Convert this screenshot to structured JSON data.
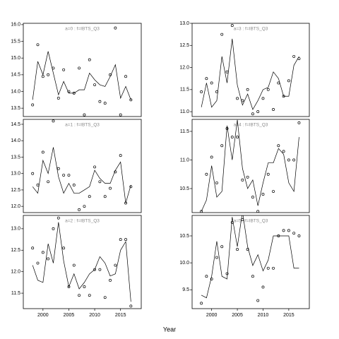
{
  "xlabel": "Year",
  "chart_data": [
    {
      "type": "line",
      "title": "a=0 : f=IBTS_Q3",
      "x": [
        1998,
        1999,
        2000,
        2001,
        2002,
        2003,
        2004,
        2005,
        2006,
        2007,
        2008,
        2009,
        2010,
        2011,
        2012,
        2013,
        2014,
        2015,
        2016,
        2017
      ],
      "series": [
        {
          "color": "#000000",
          "marker": true,
          "values": [
            13.6,
            15.4,
            14.45,
            14.5,
            14.7,
            13.8,
            14.65,
            14.0,
            13.95,
            14.7,
            13.3,
            14.95,
            14.2,
            13.7,
            13.65,
            14.5,
            15.9,
            13.3,
            14.45,
            13.75
          ]
        },
        {
          "color": "#000000",
          "marker": false,
          "values": [
            13.75,
            14.9,
            14.5,
            15.2,
            14.55,
            13.9,
            14.3,
            13.95,
            13.95,
            14.05,
            14.05,
            14.55,
            14.35,
            14.2,
            14.15,
            14.45,
            14.8,
            13.8,
            14.15,
            13.75
          ]
        }
      ],
      "xlim": [
        1996.2,
        2019
      ],
      "ylim": [
        13.25,
        16.04
      ],
      "yticks": [
        13.5,
        {
          "value": 14,
          "label": "14.0"
        },
        14.5,
        {
          "value": 15,
          "label": "15.0"
        },
        15.5,
        {
          "value": 16,
          "label": "16.0"
        }
      ]
    },
    {
      "type": "line",
      "title": "a=1 : f=IBTS_Q3",
      "x": [
        1998,
        1999,
        2000,
        2001,
        2002,
        2003,
        2004,
        2005,
        2006,
        2007,
        2008,
        2009,
        2010,
        2011,
        2012,
        2013,
        2014,
        2015,
        2016,
        2017
      ],
      "series": [
        {
          "color": "#000000",
          "marker": true,
          "values": [
            13.0,
            12.65,
            13.65,
            12.75,
            14.6,
            13.15,
            12.95,
            12.95,
            12.65,
            11.9,
            12.0,
            12.3,
            13.2,
            12.75,
            12.3,
            12.55,
            13.05,
            13.55,
            12.1,
            12.6
          ]
        },
        {
          "color": "#000000",
          "marker": false,
          "values": [
            12.6,
            12.4,
            13.4,
            13.0,
            13.8,
            12.9,
            12.4,
            12.7,
            12.4,
            12.4,
            12.5,
            12.6,
            13.1,
            12.85,
            12.7,
            12.7,
            13.1,
            13.35,
            12.1,
            12.65
          ]
        }
      ],
      "xlim": [
        1996.2,
        2019
      ],
      "ylim": [
        11.81,
        14.65
      ],
      "yticks": [
        {
          "value": 12,
          "label": "12.0"
        },
        12.5,
        {
          "value": 13,
          "label": "13.0"
        },
        13.5,
        {
          "value": 14,
          "label": "14.0"
        },
        14.5
      ]
    },
    {
      "type": "line",
      "title": "a=2 : f=IBTS_Q3",
      "x": [
        1998,
        1999,
        2000,
        2001,
        2002,
        2003,
        2004,
        2005,
        2006,
        2007,
        2008,
        2009,
        2010,
        2011,
        2012,
        2013,
        2014,
        2015,
        2016,
        2017
      ],
      "series": [
        {
          "color": "#000000",
          "marker": true,
          "values": [
            12.55,
            12.2,
            12.45,
            12.3,
            13.0,
            13.25,
            12.55,
            11.65,
            12.15,
            11.45,
            11.65,
            11.45,
            12.05,
            12.05,
            11.4,
            11.8,
            12.15,
            12.75,
            12.75,
            11.2
          ]
        },
        {
          "color": "#000000",
          "marker": false,
          "values": [
            12.15,
            11.8,
            11.75,
            12.65,
            12.2,
            13.15,
            12.25,
            11.65,
            11.95,
            11.6,
            11.75,
            11.95,
            12.05,
            12.35,
            12.2,
            11.9,
            11.95,
            12.5,
            12.7,
            11.3
          ]
        }
      ],
      "xlim": [
        1996.2,
        2019
      ],
      "ylim": [
        11.14,
        13.31
      ],
      "yticks": [
        11.5,
        {
          "value": 12,
          "label": "12.0"
        },
        12.5,
        {
          "value": 13,
          "label": "13.0"
        }
      ],
      "xticks": [
        2000,
        2005,
        2010,
        2015
      ]
    },
    {
      "type": "line",
      "title": "a=3 : f=IBTS_Q3",
      "x": [
        1998,
        1999,
        2000,
        2001,
        2002,
        2003,
        2004,
        2005,
        2006,
        2007,
        2008,
        2009,
        2010,
        2011,
        2012,
        2013,
        2014,
        2015,
        2016,
        2017
      ],
      "series": [
        {
          "color": "#000000",
          "marker": true,
          "values": [
            11.45,
            11.75,
            11.65,
            11.45,
            12.75,
            11.9,
            12.95,
            11.3,
            11.25,
            11.5,
            10.95,
            11.0,
            11.3,
            11.5,
            11.05,
            11.65,
            11.35,
            11.7,
            12.25,
            12.2
          ]
        },
        {
          "color": "#000000",
          "marker": false,
          "values": [
            11.1,
            11.65,
            11.1,
            11.25,
            12.25,
            11.65,
            12.65,
            11.6,
            11.15,
            11.4,
            11.05,
            11.25,
            11.5,
            11.55,
            11.9,
            11.75,
            11.35,
            11.35,
            12.05,
            12.25
          ]
        }
      ],
      "xlim": [
        1996.2,
        2019
      ],
      "ylim": [
        10.89,
        13.0
      ],
      "yticks": [
        {
          "value": 11,
          "label": "11.0"
        },
        11.5,
        {
          "value": 12,
          "label": "12.0"
        },
        12.5,
        {
          "value": 13,
          "label": "13.0"
        }
      ]
    },
    {
      "type": "line",
      "title": "a=4 : f=IBTS_Q3",
      "x": [
        1998,
        1999,
        2000,
        2001,
        2002,
        2003,
        2004,
        2005,
        2006,
        2007,
        2008,
        2009,
        2010,
        2011,
        2012,
        2013,
        2014,
        2015,
        2016,
        2017
      ],
      "series": [
        {
          "color": "#000000",
          "marker": true,
          "values": [
            10.1,
            10.75,
            11.05,
            10.6,
            11.25,
            11.55,
            11.4,
            11.4,
            10.65,
            10.7,
            10.35,
            10.1,
            10.4,
            10.75,
            10.45,
            11.25,
            11.15,
            11.0,
            11.0,
            11.65
          ]
        },
        {
          "color": "#000000",
          "marker": false,
          "values": [
            10.1,
            10.3,
            10.9,
            10.35,
            10.45,
            11.6,
            11.0,
            11.7,
            10.85,
            10.5,
            10.65,
            10.2,
            10.6,
            10.95,
            10.95,
            11.2,
            11.1,
            10.6,
            10.45,
            11.4
          ]
        }
      ],
      "xlim": [
        1996.2,
        2019
      ],
      "ylim": [
        10.08,
        11.71
      ],
      "yticks": [
        10.5,
        {
          "value": 11,
          "label": "11.0"
        },
        11.5
      ]
    },
    {
      "type": "line",
      "title": "a=5 : f=IBTS_Q3",
      "x": [
        1998,
        1999,
        2000,
        2001,
        2002,
        2003,
        2004,
        2005,
        2006,
        2007,
        2008,
        2009,
        2010,
        2011,
        2012,
        2013,
        2014,
        2015,
        2016,
        2017
      ],
      "series": [
        {
          "color": "#000000",
          "marker": true,
          "values": [
            9.25,
            9.75,
            9.7,
            10.1,
            10.3,
            9.8,
            10.75,
            10.25,
            10.8,
            10.25,
            9.75,
            9.3,
            9.55,
            9.9,
            9.9,
            10.5,
            10.6,
            10.6,
            10.55,
            10.5
          ]
        },
        {
          "color": "#000000",
          "marker": false,
          "values": [
            9.4,
            9.35,
            9.75,
            10.4,
            9.75,
            9.7,
            10.85,
            10.3,
            10.95,
            10.3,
            9.95,
            10.15,
            9.85,
            10.05,
            10.5,
            10.5,
            10.5,
            10.5,
            9.9,
            9.9
          ]
        }
      ],
      "xlim": [
        1996.2,
        2019
      ],
      "ylim": [
        9.15,
        10.88
      ],
      "yticks": [
        9.5,
        {
          "value": 10,
          "label": "10.0"
        },
        10.5
      ],
      "xticks": [
        2000,
        2005,
        2010,
        2015
      ]
    }
  ]
}
